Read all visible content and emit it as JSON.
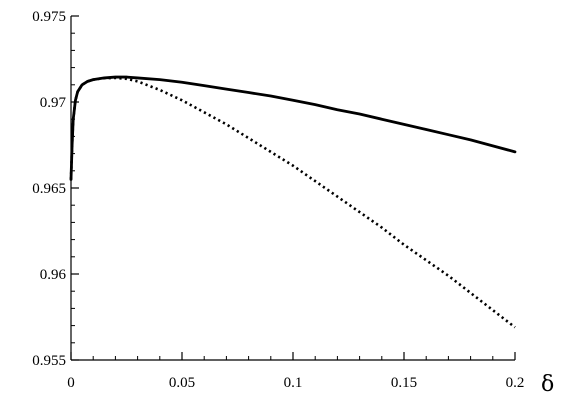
{
  "chart_data": {
    "type": "line",
    "title": "",
    "xlabel": "δ",
    "ylabel": "",
    "xlim": [
      0,
      0.2
    ],
    "ylim": [
      0.955,
      0.975
    ],
    "x_ticks": [
      0,
      0.05,
      0.1,
      0.15,
      0.2
    ],
    "x_tick_labels": [
      "0",
      "0.05",
      "0.1",
      "0.15",
      "0.2"
    ],
    "y_ticks": [
      0.955,
      0.96,
      0.965,
      0.97,
      0.975
    ],
    "y_tick_labels": [
      "0.955",
      "0.96",
      "0.965",
      "0.97",
      "0.975"
    ],
    "grid": false,
    "series": [
      {
        "style": "solid",
        "color": "#000000",
        "x": [
          0,
          0.0005,
          0.001,
          0.002,
          0.003,
          0.005,
          0.0075,
          0.01,
          0.0125,
          0.015,
          0.02,
          0.025,
          0.03,
          0.04,
          0.05,
          0.06,
          0.07,
          0.08,
          0.09,
          0.1,
          0.11,
          0.12,
          0.13,
          0.14,
          0.15,
          0.16,
          0.17,
          0.18,
          0.19,
          0.2
        ],
        "y": [
          0.9655,
          0.9675,
          0.969,
          0.9701,
          0.9706,
          0.971,
          0.9712,
          0.9713,
          0.97135,
          0.9714,
          0.97145,
          0.97145,
          0.9714,
          0.9713,
          0.97115,
          0.97095,
          0.97075,
          0.97055,
          0.97035,
          0.9701,
          0.96985,
          0.96955,
          0.9693,
          0.969,
          0.9687,
          0.9684,
          0.9681,
          0.9678,
          0.96745,
          0.9671
        ]
      },
      {
        "style": "dotted",
        "color": "#000000",
        "x": [
          0,
          0.0005,
          0.001,
          0.002,
          0.003,
          0.005,
          0.0075,
          0.01,
          0.0125,
          0.015,
          0.02,
          0.025,
          0.03,
          0.04,
          0.05,
          0.06,
          0.07,
          0.08,
          0.09,
          0.1,
          0.11,
          0.12,
          0.13,
          0.14,
          0.15,
          0.16,
          0.17,
          0.18,
          0.19,
          0.2
        ],
        "y": [
          0.9655,
          0.9675,
          0.969,
          0.9701,
          0.9706,
          0.971,
          0.9712,
          0.9713,
          0.97135,
          0.97138,
          0.9714,
          0.97135,
          0.9712,
          0.9707,
          0.9701,
          0.9694,
          0.9687,
          0.9679,
          0.9671,
          0.9663,
          0.9654,
          0.9645,
          0.9636,
          0.9627,
          0.9617,
          0.9608,
          0.9599,
          0.9589,
          0.9579,
          0.9569
        ]
      }
    ]
  }
}
